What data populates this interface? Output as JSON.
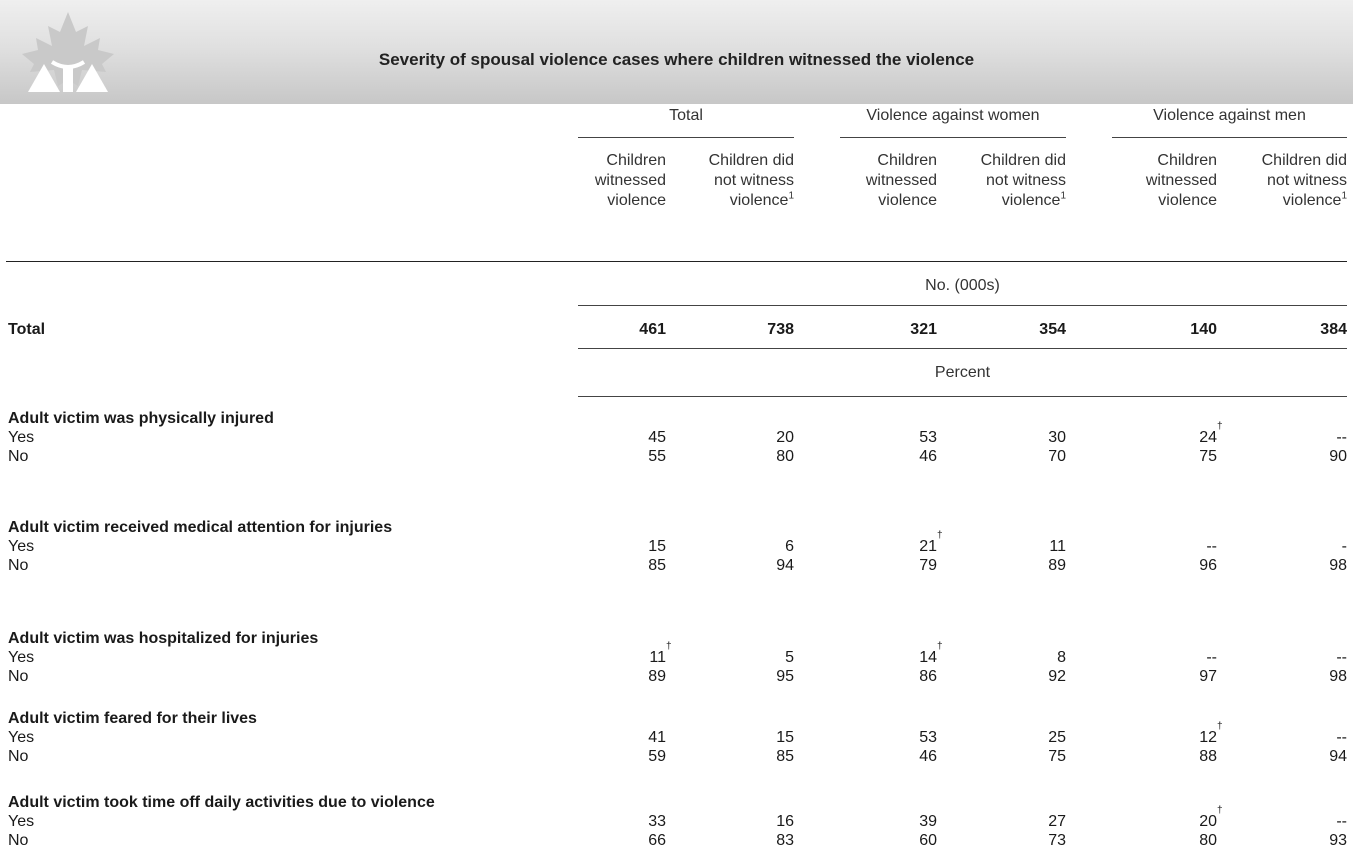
{
  "title": "Severity of spousal violence cases where children witnessed the violence",
  "groups": [
    {
      "label": "Total"
    },
    {
      "label": "Violence against women"
    },
    {
      "label": "Violence against men"
    }
  ],
  "subheaders": {
    "witnessed": [
      "Children",
      "witnessed",
      "violence"
    ],
    "not_witnessed": [
      "Children did",
      "not witness",
      "violence"
    ],
    "footnote_marker": "1"
  },
  "units": {
    "count": "No. (000s)",
    "percent": "Percent"
  },
  "total_row": {
    "label": "Total",
    "values": [
      "461",
      "738",
      "321",
      "354",
      "140",
      "384"
    ]
  },
  "sections": [
    {
      "title": "Adult victim was physically injured",
      "rows": [
        {
          "label": "Yes",
          "values": [
            "45",
            "20",
            "53",
            "30",
            "24",
            "--"
          ],
          "dagger": [
            false,
            false,
            false,
            false,
            true,
            false
          ]
        },
        {
          "label": "No",
          "values": [
            "55",
            "80",
            "46",
            "70",
            "75",
            "90"
          ],
          "dagger": [
            false,
            false,
            false,
            false,
            false,
            false
          ]
        }
      ]
    },
    {
      "title": "Adult victim received medical attention for injuries",
      "rows": [
        {
          "label": "Yes",
          "values": [
            "15",
            "6",
            "21",
            "11",
            "--",
            "-"
          ],
          "dagger": [
            false,
            false,
            true,
            false,
            false,
            false
          ]
        },
        {
          "label": "No",
          "values": [
            "85",
            "94",
            "79",
            "89",
            "96",
            "98"
          ],
          "dagger": [
            false,
            false,
            false,
            false,
            false,
            false
          ]
        }
      ]
    },
    {
      "title": "Adult victim was hospitalized for injuries",
      "rows": [
        {
          "label": "Yes",
          "values": [
            "11",
            "5",
            "14",
            "8",
            "--",
            "--"
          ],
          "dagger": [
            true,
            false,
            true,
            false,
            false,
            false
          ]
        },
        {
          "label": "No",
          "values": [
            "89",
            "95",
            "86",
            "92",
            "97",
            "98"
          ],
          "dagger": [
            false,
            false,
            false,
            false,
            false,
            false
          ]
        }
      ]
    },
    {
      "title": "Adult victim feared for their lives",
      "rows": [
        {
          "label": "Yes",
          "values": [
            "41",
            "15",
            "53",
            "25",
            "12",
            "--"
          ],
          "dagger": [
            false,
            false,
            false,
            false,
            true,
            false
          ]
        },
        {
          "label": "No",
          "values": [
            "59",
            "85",
            "46",
            "75",
            "88",
            "94"
          ],
          "dagger": [
            false,
            false,
            false,
            false,
            false,
            false
          ]
        }
      ]
    },
    {
      "title": "Adult victim took time off daily activities due to violence",
      "rows": [
        {
          "label": "Yes",
          "values": [
            "33",
            "16",
            "39",
            "27",
            "20",
            "--"
          ],
          "dagger": [
            false,
            false,
            false,
            false,
            true,
            false
          ]
        },
        {
          "label": "No",
          "values": [
            "66",
            "83",
            "60",
            "73",
            "80",
            "93"
          ],
          "dagger": [
            false,
            false,
            false,
            false,
            false,
            false
          ]
        }
      ]
    }
  ],
  "dagger_symbol": "†"
}
